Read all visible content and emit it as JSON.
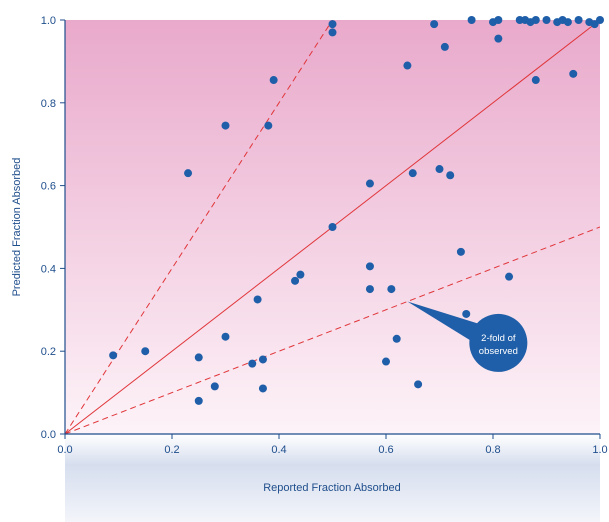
{
  "chart_data": {
    "type": "scatter",
    "title": "",
    "xlabel": "Reported Fraction Absorbed",
    "ylabel": "Predicted Fraction Absorbed",
    "xlim": [
      0,
      1
    ],
    "ylim": [
      0,
      1
    ],
    "xticks": [
      "0.0",
      "0.2",
      "0.4",
      "0.6",
      "0.8",
      "1.0"
    ],
    "yticks": [
      "0.0",
      "0.2",
      "0.4",
      "0.6",
      "0.8",
      "1.0"
    ],
    "grid": false,
    "reference_lines": [
      {
        "name": "identity",
        "slope": 1,
        "style": "solid"
      },
      {
        "name": "2-fold over",
        "slope": 2,
        "style": "dashed"
      },
      {
        "name": "2-fold under",
        "slope": 0.5,
        "style": "dashed"
      }
    ],
    "annotation": {
      "line1": "2-fold of",
      "line2": "observed",
      "x": 0.81,
      "y": 0.22,
      "points_to": [
        0.64,
        0.32
      ]
    },
    "colors": {
      "points": "#1f5ea8",
      "lines": "#e0363a",
      "plot_bg_top": "#e9a9cb",
      "plot_bg_bottom": "#fdf3f8",
      "band": "#c9d3e6",
      "callout": "#1f5ea8"
    },
    "points": [
      [
        0.09,
        0.19
      ],
      [
        0.15,
        0.2
      ],
      [
        0.23,
        0.63
      ],
      [
        0.25,
        0.185
      ],
      [
        0.25,
        0.08
      ],
      [
        0.28,
        0.115
      ],
      [
        0.3,
        0.745
      ],
      [
        0.3,
        0.235
      ],
      [
        0.35,
        0.17
      ],
      [
        0.36,
        0.325
      ],
      [
        0.37,
        0.18
      ],
      [
        0.37,
        0.11
      ],
      [
        0.38,
        0.745
      ],
      [
        0.39,
        0.855
      ],
      [
        0.43,
        0.37
      ],
      [
        0.44,
        0.385
      ],
      [
        0.5,
        0.5
      ],
      [
        0.5,
        0.99
      ],
      [
        0.5,
        0.97
      ],
      [
        0.57,
        0.605
      ],
      [
        0.57,
        0.405
      ],
      [
        0.57,
        0.35
      ],
      [
        0.6,
        0.175
      ],
      [
        0.61,
        0.35
      ],
      [
        0.62,
        0.23
      ],
      [
        0.64,
        0.89
      ],
      [
        0.65,
        0.63
      ],
      [
        0.66,
        0.12
      ],
      [
        0.69,
        0.99
      ],
      [
        0.7,
        0.64
      ],
      [
        0.71,
        0.935
      ],
      [
        0.72,
        0.625
      ],
      [
        0.74,
        0.44
      ],
      [
        0.75,
        0.29
      ],
      [
        0.76,
        1.0
      ],
      [
        0.8,
        0.995
      ],
      [
        0.81,
        0.955
      ],
      [
        0.81,
        1.0
      ],
      [
        0.83,
        0.38
      ],
      [
        0.85,
        1.0
      ],
      [
        0.86,
        1.0
      ],
      [
        0.87,
        0.995
      ],
      [
        0.88,
        0.855
      ],
      [
        0.88,
        1.0
      ],
      [
        0.9,
        1.0
      ],
      [
        0.92,
        0.995
      ],
      [
        0.93,
        1.0
      ],
      [
        0.94,
        0.995
      ],
      [
        0.95,
        0.87
      ],
      [
        0.96,
        1.0
      ],
      [
        0.98,
        0.995
      ],
      [
        0.99,
        0.99
      ],
      [
        1.0,
        1.0
      ]
    ]
  }
}
